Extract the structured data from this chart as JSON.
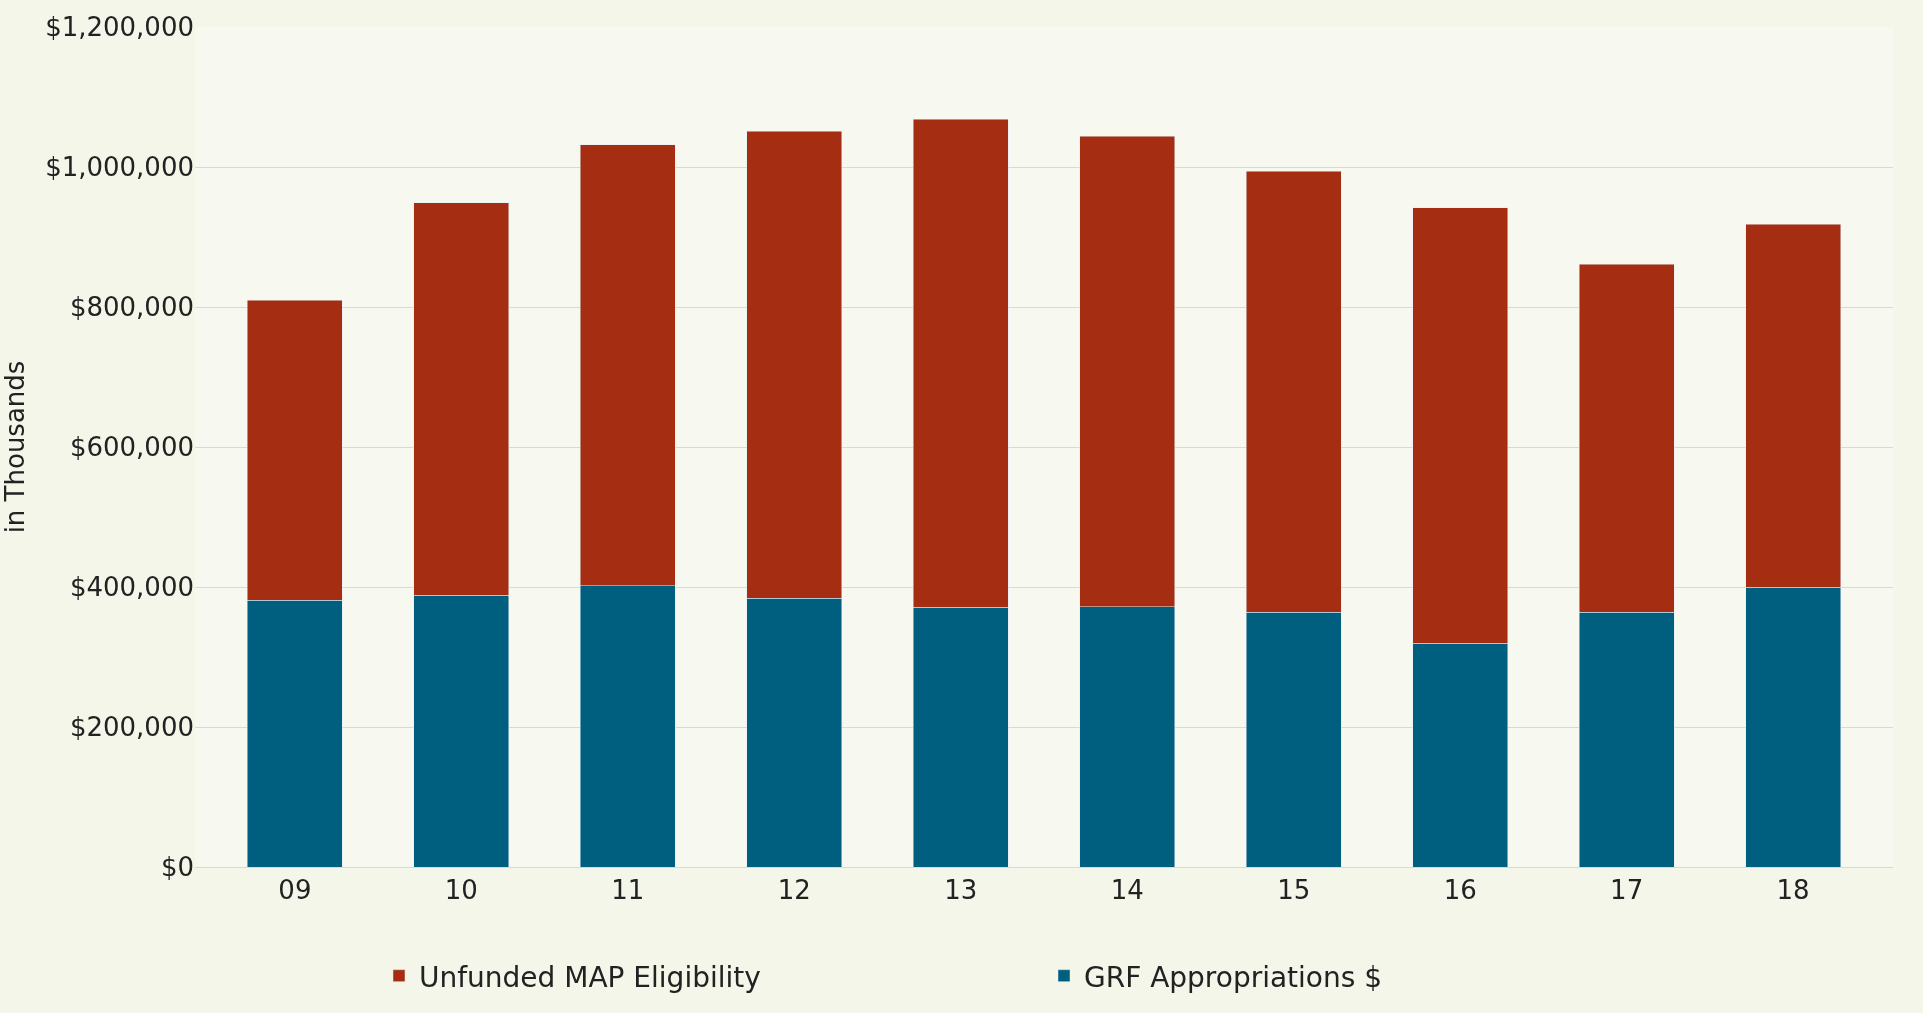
{
  "chart_data": {
    "type": "bar",
    "stacked": true,
    "ylabel": "in Thousands",
    "categories": [
      "09",
      "10",
      "11",
      "12",
      "13",
      "14",
      "15",
      "16",
      "17",
      "18"
    ],
    "series": [
      {
        "name": "GRF Appropriations $",
        "color": "#005f7f",
        "values": [
          381000,
          388000,
          402000,
          384000,
          371000,
          372000,
          364000,
          320000,
          364000,
          400000
        ]
      },
      {
        "name": "Unfunded MAP Eligibility",
        "color": "#a52d11",
        "values": [
          429000,
          561000,
          630000,
          667000,
          697000,
          672000,
          630000,
          622000,
          497000,
          518000
        ]
      }
    ],
    "ylim": [
      0,
      1200000
    ],
    "yticks": [
      {
        "value": 0,
        "label": "$0"
      },
      {
        "value": 200000,
        "label": "$200,000"
      },
      {
        "value": 400000,
        "label": "$400,000"
      },
      {
        "value": 600000,
        "label": "$600,000"
      },
      {
        "value": 800000,
        "label": "$800,000"
      },
      {
        "value": 1000000,
        "label": "$1,000,000"
      },
      {
        "value": 1200000,
        "label": "$1,200,000"
      }
    ],
    "grid": "y",
    "legend": "bottom"
  }
}
